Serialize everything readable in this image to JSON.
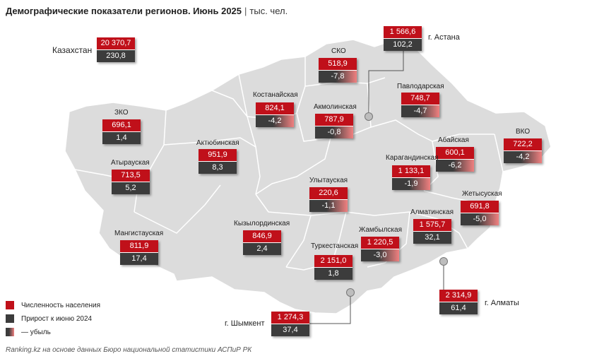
{
  "header": {
    "title": "Демографические показатели регионов. Июнь 2025",
    "separator": "|",
    "unit": "тыс. чел."
  },
  "kazakhstan": {
    "label": "Казахстан",
    "population": "20 370,7",
    "change": "230,8"
  },
  "regions": [
    {
      "id": "sko",
      "name": "СКО",
      "population": "518,9",
      "change": "-7,8",
      "negative": true
    },
    {
      "id": "astana",
      "name": "г. Астана",
      "population": "1 566,6",
      "change": "102,2",
      "negative": false
    },
    {
      "id": "kostanay",
      "name": "Костанайская",
      "population": "824,1",
      "change": "-4,2",
      "negative": true
    },
    {
      "id": "akmola",
      "name": "Акмолинская",
      "population": "787,9",
      "change": "-0,8",
      "negative": true
    },
    {
      "id": "pavlodar",
      "name": "Павлодарская",
      "population": "748,7",
      "change": "-4,7",
      "negative": true
    },
    {
      "id": "zko",
      "name": "ЗКО",
      "population": "696,1",
      "change": "1,4",
      "negative": false
    },
    {
      "id": "abay",
      "name": "Абайская",
      "population": "600,1",
      "change": "-6,2",
      "negative": true
    },
    {
      "id": "vko",
      "name": "ВКО",
      "population": "722,2",
      "change": "-4,2",
      "negative": true
    },
    {
      "id": "aktobe",
      "name": "Актюбинская",
      "population": "951,9",
      "change": "8,3",
      "negative": false
    },
    {
      "id": "karaganda",
      "name": "Карагандинская",
      "population": "1 133,1",
      "change": "-1,9",
      "negative": true
    },
    {
      "id": "atyrau",
      "name": "Атырауская",
      "population": "713,5",
      "change": "5,2",
      "negative": false
    },
    {
      "id": "ulytau",
      "name": "Улытауская",
      "population": "220,6",
      "change": "-1,1",
      "negative": true
    },
    {
      "id": "zhetysu",
      "name": "Жетысуская",
      "population": "691,8",
      "change": "-5,0",
      "negative": true
    },
    {
      "id": "almaty_reg",
      "name": "Алматинская",
      "population": "1 575,7",
      "change": "32,1",
      "negative": false
    },
    {
      "id": "kyzylorda",
      "name": "Кызылординская",
      "population": "846,9",
      "change": "2,4",
      "negative": false
    },
    {
      "id": "zhambyl",
      "name": "Жамбылская",
      "population": "1 220,5",
      "change": "-3,0",
      "negative": true
    },
    {
      "id": "mangystau",
      "name": "Мангистауская",
      "population": "811,9",
      "change": "17,4",
      "negative": false
    },
    {
      "id": "turkestan",
      "name": "Туркестанская",
      "population": "2 151,0",
      "change": "1,8",
      "negative": false
    },
    {
      "id": "almaty_city",
      "name": "г. Алматы",
      "population": "2 314,9",
      "change": "61,4",
      "negative": false
    },
    {
      "id": "shymkent",
      "name": "г. Шымкент",
      "population": "1 274,3",
      "change": "37,4",
      "negative": false
    }
  ],
  "legend": {
    "population": "Численность населения",
    "growth": "Прирост к июню 2024",
    "decline": "— убыль"
  },
  "colors": {
    "population": "#c0101a",
    "growth": "#3c3c3c",
    "decline_tint": "#f08080",
    "land": "#dcdcdc"
  },
  "source": "Ranking.kz на основе данных Бюро национальной статистики АСПиР РК"
}
